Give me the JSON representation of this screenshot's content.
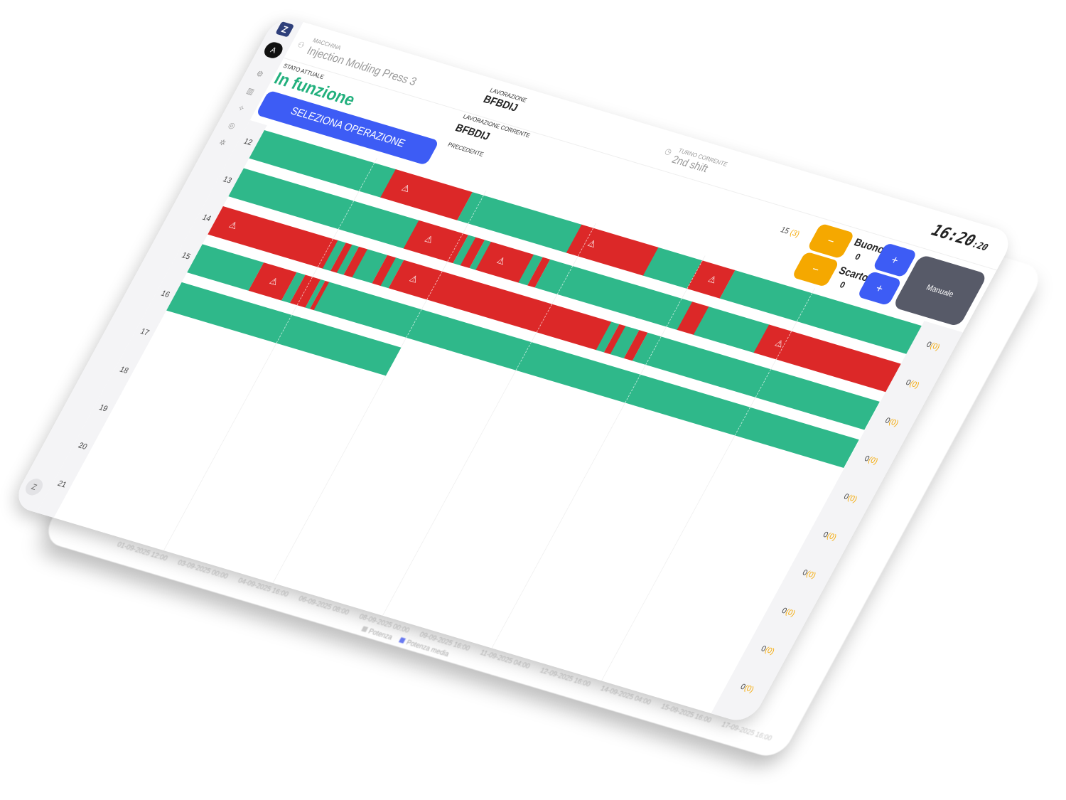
{
  "colors": {
    "running": "#2fb88a",
    "alarm": "#dc2828",
    "accent": "#3d5cf5",
    "minus": "#f5a800",
    "manual": "#575a68",
    "status": "#22b07d"
  },
  "background_chart": {
    "x_labels": [
      "01-09-2025 12:00",
      "03-09-2025 00:00",
      "04-09-2025 16:00",
      "06-09-2025 08:00",
      "08-09-2025 00:00",
      "09-09-2025 16:00",
      "11-09-2025 04:00",
      "12-09-2025 16:00",
      "14-09-2025 04:00",
      "15-09-2025 16:00",
      "17-09-2025 16:00"
    ],
    "legend": [
      "Potenza",
      "Potenza media"
    ]
  },
  "sidebar": {
    "logo": "Z",
    "avatar": "A",
    "icons": [
      "machines-icon",
      "factory-icon",
      "sparkle-icon",
      "gauge-icon",
      "settings-icon"
    ],
    "bottom": "Z"
  },
  "header": {
    "machine_label": "MACCHINA",
    "machine": "Injection Molding Press 3",
    "status_label": "STATO ATTUALE",
    "status": "In funzione",
    "select_button": "SELEZIONA OPERAZIONE",
    "job_label": "LAVORAZIONE",
    "job": "BFBDIJ",
    "current_job_label": "LAVORAZIONE CORRENTE",
    "current_job": "BFBDIJ",
    "previous_label": "PRECEDENTE",
    "shift_label": "TURNO CORRENTE",
    "shift": "2nd shift",
    "clock_hm": "16:20",
    "clock_s": ":20"
  },
  "counters": {
    "total": "15",
    "total_scrap": "(3)",
    "good_label": "Buono",
    "good": "0",
    "scrap_label": "Scarto",
    "scrap": "0",
    "minus": "−",
    "plus": "+",
    "manual": "Manuale"
  },
  "timeline": {
    "current_minute": 20,
    "rows": [
      {
        "hour": "12",
        "count": "0",
        "scrap": "(0)",
        "segments": [
          [
            0,
            12,
            "running"
          ],
          [
            12,
            19,
            "alarm"
          ],
          [
            19,
            29,
            "running"
          ],
          [
            29,
            36,
            "alarm"
          ],
          [
            36,
            40,
            "running"
          ],
          [
            40,
            43,
            "alarm"
          ],
          [
            43,
            60,
            "running"
          ]
        ]
      },
      {
        "hour": "13",
        "count": "0",
        "scrap": "(0)",
        "segments": [
          [
            0,
            16,
            "running"
          ],
          [
            16,
            20.5,
            "alarm"
          ],
          [
            20.5,
            21.2,
            "running"
          ],
          [
            21.2,
            22,
            "alarm"
          ],
          [
            22,
            22.6,
            "running"
          ],
          [
            22.6,
            26.5,
            "alarm"
          ],
          [
            26.5,
            27.3,
            "running"
          ],
          [
            27.3,
            28,
            "alarm"
          ],
          [
            28,
            41,
            "running"
          ],
          [
            41,
            42.5,
            "alarm"
          ],
          [
            42.5,
            48,
            "running"
          ],
          [
            48,
            60,
            "alarm"
          ]
        ]
      },
      {
        "hour": "14",
        "count": "0",
        "scrap": "(0)",
        "segments": [
          [
            0,
            10.5,
            "alarm"
          ],
          [
            10.5,
            11.2,
            "running"
          ],
          [
            11.2,
            11.8,
            "alarm"
          ],
          [
            11.8,
            12.4,
            "running"
          ],
          [
            12.4,
            13.2,
            "alarm"
          ],
          [
            13.2,
            15,
            "running"
          ],
          [
            15,
            15.8,
            "alarm"
          ],
          [
            15.8,
            16.5,
            "running"
          ],
          [
            16.5,
            35.5,
            "alarm"
          ],
          [
            35.5,
            36.2,
            "running"
          ],
          [
            36.2,
            36.8,
            "alarm"
          ],
          [
            36.8,
            38,
            "running"
          ],
          [
            38,
            38.8,
            "alarm"
          ],
          [
            38.8,
            60,
            "running"
          ]
        ]
      },
      {
        "hour": "15",
        "count": "0",
        "scrap": "(0)",
        "segments": [
          [
            0,
            5.6,
            "running"
          ],
          [
            5.6,
            8.6,
            "alarm"
          ],
          [
            8.6,
            9.4,
            "running"
          ],
          [
            9.4,
            10.8,
            "alarm"
          ],
          [
            10.8,
            11.2,
            "running"
          ],
          [
            11.2,
            11.6,
            "alarm"
          ],
          [
            11.6,
            60,
            "running"
          ]
        ]
      },
      {
        "hour": "16",
        "count": "0",
        "scrap": "(0)",
        "segments": [
          [
            0,
            20,
            "running"
          ]
        ]
      },
      {
        "hour": "17",
        "count": "0",
        "scrap": "(0)",
        "segments": []
      },
      {
        "hour": "18",
        "count": "0",
        "scrap": "(0)",
        "segments": []
      },
      {
        "hour": "19",
        "count": "0",
        "scrap": "(0)",
        "segments": []
      },
      {
        "hour": "20",
        "count": "0",
        "scrap": "(0)",
        "segments": []
      },
      {
        "hour": "21",
        "count": "0",
        "scrap": "(0)",
        "segments": []
      }
    ]
  }
}
